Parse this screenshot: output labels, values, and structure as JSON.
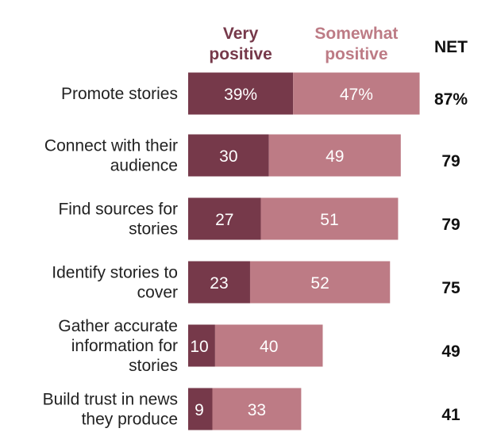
{
  "chart_data": {
    "type": "bar",
    "orientation": "horizontal",
    "stacked": true,
    "legend_placement": "top",
    "grid": false,
    "xlim": [
      0,
      100
    ],
    "categories": [
      "Promote stories",
      "Connect with their audience",
      "Find sources for stories",
      "Identify stories to cover",
      "Gather accurate information for stories",
      "Build trust in news they produce"
    ],
    "category_lines": [
      [
        "Promote stories"
      ],
      [
        "Connect with their",
        "audience"
      ],
      [
        "Find sources for",
        "stories"
      ],
      [
        "Identify stories to",
        "cover"
      ],
      [
        "Gather accurate",
        "information for",
        "stories"
      ],
      [
        "Build trust in news",
        "they produce"
      ]
    ],
    "series": [
      {
        "name": "Very positive",
        "name_lines": [
          "Very",
          "positive"
        ],
        "color": "#76394a",
        "values": [
          39,
          30,
          27,
          23,
          10,
          9
        ],
        "labels": [
          "39%",
          "30",
          "27",
          "23",
          "10",
          "9"
        ]
      },
      {
        "name": "Somewhat positive",
        "name_lines": [
          "Somewhat",
          "positive"
        ],
        "color": "#bd7b85",
        "values": [
          47,
          49,
          51,
          52,
          40,
          33
        ],
        "labels": [
          "47%",
          "49",
          "51",
          "52",
          "40",
          "33"
        ]
      }
    ],
    "net": {
      "header": "NET",
      "values": [
        87,
        79,
        79,
        75,
        49,
        41
      ],
      "labels": [
        "87%",
        "79",
        "79",
        "75",
        "49",
        "41"
      ]
    }
  }
}
